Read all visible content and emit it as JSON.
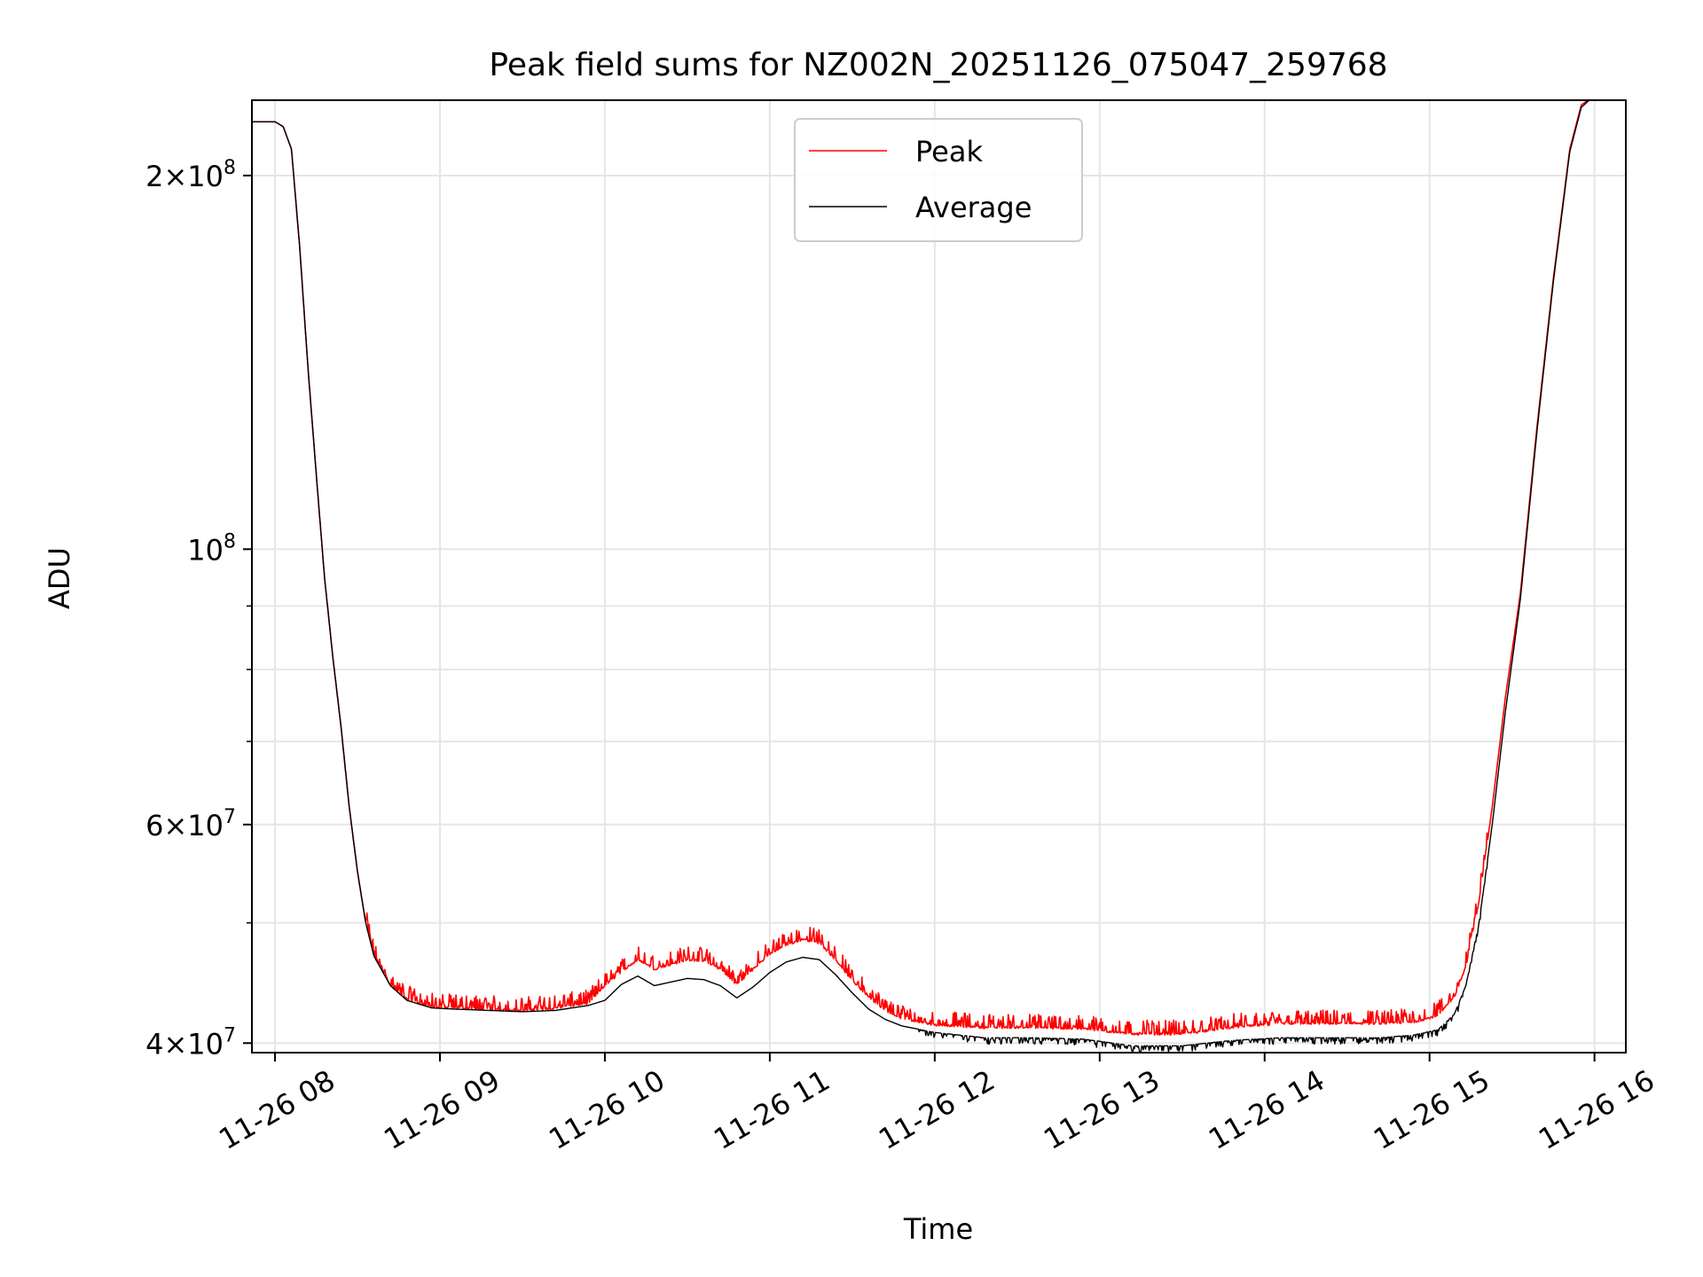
{
  "chart_data": {
    "type": "line",
    "title": "Peak field sums for NZ002N_20251126_075047_259768",
    "xlabel": "Time",
    "ylabel": "ADU",
    "yscale": "log",
    "grid": true,
    "legend_position": "upper-center",
    "xlim_hours": [
      7.86,
      16.19
    ],
    "ylim": [
      39300000,
      230000000
    ],
    "x_ticks": [
      {
        "hour": 8,
        "label": "11-26 08"
      },
      {
        "hour": 9,
        "label": "11-26 09"
      },
      {
        "hour": 10,
        "label": "11-26 10"
      },
      {
        "hour": 11,
        "label": "11-26 11"
      },
      {
        "hour": 12,
        "label": "11-26 12"
      },
      {
        "hour": 13,
        "label": "11-26 13"
      },
      {
        "hour": 14,
        "label": "11-26 14"
      },
      {
        "hour": 15,
        "label": "11-26 15"
      },
      {
        "hour": 16,
        "label": "11-26 16"
      }
    ],
    "y_ticks": [
      {
        "value": 40000000,
        "base": "4",
        "exp": "7"
      },
      {
        "value": 60000000,
        "base": "6",
        "exp": "7"
      },
      {
        "value": 100000000,
        "base": "10",
        "exp": "8"
      },
      {
        "value": 200000000,
        "base": "2",
        "exp": "8"
      }
    ],
    "y_minor_grid": [
      50000000,
      70000000,
      80000000,
      90000000,
      300000000
    ],
    "series": [
      {
        "name": "Peak",
        "color": "#ff0000",
        "noise": "spiky",
        "points": [
          [
            7.86,
            221000000
          ],
          [
            8.0,
            221000000
          ],
          [
            8.05,
            219000000
          ],
          [
            8.1,
            210000000
          ],
          [
            8.15,
            175000000
          ],
          [
            8.2,
            140000000
          ],
          [
            8.25,
            115000000
          ],
          [
            8.3,
            95000000
          ],
          [
            8.35,
            82000000
          ],
          [
            8.4,
            72000000
          ],
          [
            8.45,
            62000000
          ],
          [
            8.5,
            55000000
          ],
          [
            8.55,
            50000000
          ],
          [
            8.6,
            47000000
          ],
          [
            8.7,
            44500000
          ],
          [
            8.8,
            43300000
          ],
          [
            8.95,
            42700000
          ],
          [
            9.1,
            42600000
          ],
          [
            9.3,
            42500000
          ],
          [
            9.5,
            42400000
          ],
          [
            9.7,
            42600000
          ],
          [
            9.9,
            43000000
          ],
          [
            10.0,
            44400000
          ],
          [
            10.1,
            45600000
          ],
          [
            10.2,
            46600000
          ],
          [
            10.3,
            45800000
          ],
          [
            10.4,
            46200000
          ],
          [
            10.5,
            46600000
          ],
          [
            10.6,
            46500000
          ],
          [
            10.7,
            45800000
          ],
          [
            10.8,
            44500000
          ],
          [
            10.9,
            45800000
          ],
          [
            11.0,
            47100000
          ],
          [
            11.1,
            47900000
          ],
          [
            11.2,
            48400000
          ],
          [
            11.3,
            48100000
          ],
          [
            11.4,
            46600000
          ],
          [
            11.5,
            44800000
          ],
          [
            11.6,
            43500000
          ],
          [
            11.7,
            42400000
          ],
          [
            11.8,
            41800000
          ],
          [
            12.0,
            41300000
          ],
          [
            12.3,
            41100000
          ],
          [
            12.6,
            41100000
          ],
          [
            12.9,
            41000000
          ],
          [
            13.2,
            40600000
          ],
          [
            13.5,
            40600000
          ],
          [
            13.8,
            41100000
          ],
          [
            14.1,
            41400000
          ],
          [
            14.4,
            41400000
          ],
          [
            14.7,
            41400000
          ],
          [
            14.9,
            41500000
          ],
          [
            15.05,
            42000000
          ],
          [
            15.15,
            43500000
          ],
          [
            15.22,
            46000000
          ],
          [
            15.3,
            52000000
          ],
          [
            15.38,
            62000000
          ],
          [
            15.46,
            76000000
          ],
          [
            15.55,
            92000000
          ],
          [
            15.65,
            125000000
          ],
          [
            15.75,
            165000000
          ],
          [
            15.85,
            210000000
          ],
          [
            15.92,
            228000000
          ],
          [
            16.0,
            232000000
          ]
        ]
      },
      {
        "name": "Average",
        "color": "#000000",
        "noise": "dips",
        "points": [
          [
            7.86,
            221000000
          ],
          [
            8.0,
            221000000
          ],
          [
            8.05,
            219000000
          ],
          [
            8.1,
            210000000
          ],
          [
            8.15,
            175000000
          ],
          [
            8.2,
            140000000
          ],
          [
            8.25,
            115000000
          ],
          [
            8.3,
            95000000
          ],
          [
            8.35,
            82000000
          ],
          [
            8.4,
            72000000
          ],
          [
            8.45,
            62000000
          ],
          [
            8.5,
            55000000
          ],
          [
            8.55,
            50000000
          ],
          [
            8.6,
            47000000
          ],
          [
            8.7,
            44500000
          ],
          [
            8.8,
            43300000
          ],
          [
            8.95,
            42700000
          ],
          [
            9.1,
            42600000
          ],
          [
            9.3,
            42500000
          ],
          [
            9.5,
            42400000
          ],
          [
            9.7,
            42500000
          ],
          [
            9.9,
            42900000
          ],
          [
            10.0,
            43300000
          ],
          [
            10.1,
            44600000
          ],
          [
            10.2,
            45300000
          ],
          [
            10.3,
            44500000
          ],
          [
            10.4,
            44800000
          ],
          [
            10.5,
            45100000
          ],
          [
            10.6,
            45000000
          ],
          [
            10.7,
            44500000
          ],
          [
            10.8,
            43500000
          ],
          [
            10.9,
            44400000
          ],
          [
            11.0,
            45600000
          ],
          [
            11.1,
            46500000
          ],
          [
            11.2,
            46900000
          ],
          [
            11.3,
            46700000
          ],
          [
            11.4,
            45400000
          ],
          [
            11.5,
            43900000
          ],
          [
            11.6,
            42600000
          ],
          [
            11.7,
            41800000
          ],
          [
            11.8,
            41300000
          ],
          [
            12.0,
            40800000
          ],
          [
            12.3,
            40400000
          ],
          [
            12.6,
            40400000
          ],
          [
            12.9,
            40300000
          ],
          [
            13.2,
            39800000
          ],
          [
            13.5,
            39800000
          ],
          [
            13.8,
            40200000
          ],
          [
            14.1,
            40400000
          ],
          [
            14.4,
            40400000
          ],
          [
            14.7,
            40400000
          ],
          [
            14.9,
            40600000
          ],
          [
            15.05,
            41000000
          ],
          [
            15.15,
            42200000
          ],
          [
            15.22,
            44500000
          ],
          [
            15.3,
            50000000
          ],
          [
            15.38,
            60000000
          ],
          [
            15.46,
            74000000
          ],
          [
            15.55,
            91000000
          ],
          [
            15.65,
            124000000
          ],
          [
            15.75,
            164000000
          ],
          [
            15.85,
            209000000
          ],
          [
            15.92,
            227000000
          ],
          [
            16.0,
            232000000
          ]
        ]
      }
    ]
  }
}
